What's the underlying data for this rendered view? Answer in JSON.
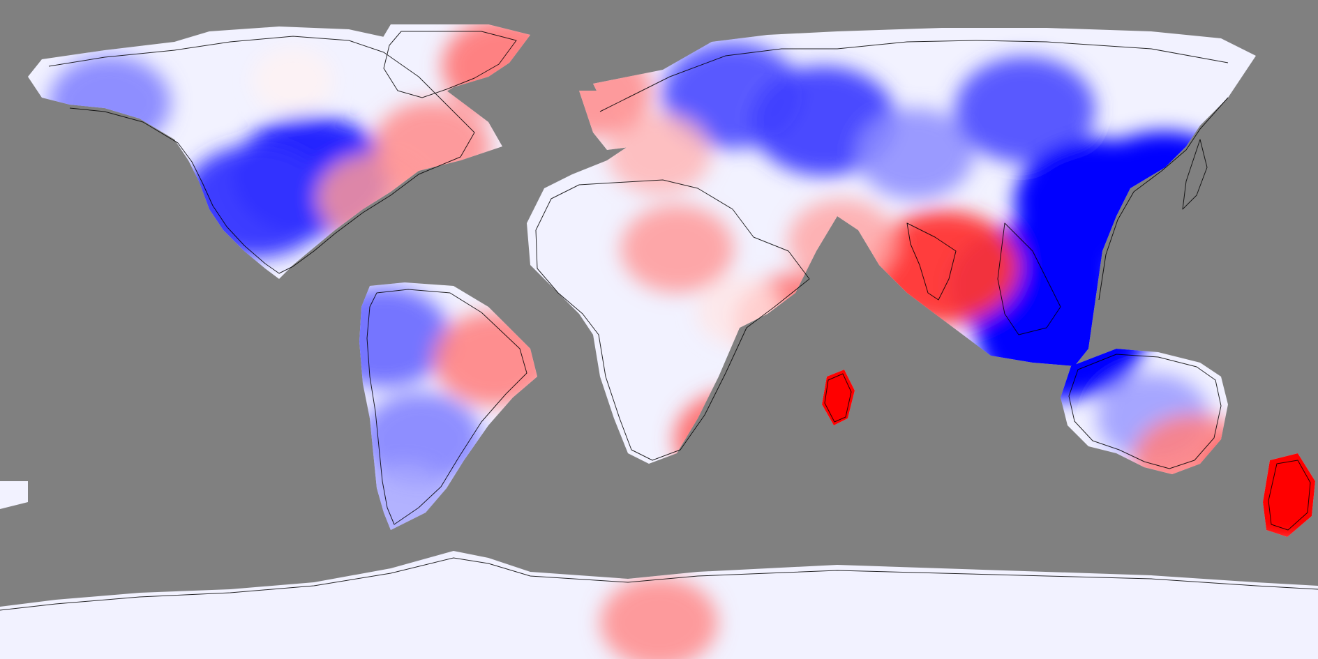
{
  "map": {
    "projection": "equirectangular",
    "extent": {
      "lon": [
        -180,
        180
      ],
      "lat": [
        -90,
        90
      ]
    },
    "background_color": "#808080",
    "coastline_color": "#000000",
    "color_scale": {
      "type": "diverging",
      "negative_color": "#0000ff",
      "neutral_color": "#ffffff",
      "positive_color": "#ff0000"
    },
    "legend": null,
    "title": null,
    "anomaly_regions": [
      {
        "name": "north-america-interior-cold",
        "lon": -95,
        "lat": 42,
        "value": -0.9
      },
      {
        "name": "western-us-cold",
        "lon": -110,
        "lat": 35,
        "value": -0.8
      },
      {
        "name": "alaska-cold",
        "lon": -150,
        "lat": 62,
        "value": -0.5
      },
      {
        "name": "canada-arctic-neutral",
        "lon": -100,
        "lat": 68,
        "value": 0.05
      },
      {
        "name": "eastern-canada-warm",
        "lon": -62,
        "lat": 50,
        "value": 0.45
      },
      {
        "name": "us-east-coast-warm",
        "lon": -78,
        "lat": 36,
        "value": 0.4
      },
      {
        "name": "greenland-warm",
        "lon": -42,
        "lat": 72,
        "value": 0.55
      },
      {
        "name": "northwest-south-america-cold",
        "lon": -75,
        "lat": -2,
        "value": -0.6
      },
      {
        "name": "southern-south-america-cold",
        "lon": -65,
        "lat": -30,
        "value": -0.5
      },
      {
        "name": "eastern-brazil-warm",
        "lon": -45,
        "lat": -8,
        "value": 0.5
      },
      {
        "name": "patagonia-cold",
        "lon": -70,
        "lat": -48,
        "value": -0.35
      },
      {
        "name": "scandinavia-cold",
        "lon": 20,
        "lat": 64,
        "value": -0.7
      },
      {
        "name": "western-russia-cold",
        "lon": 45,
        "lat": 57,
        "value": -0.75
      },
      {
        "name": "western-europe-warm",
        "lon": 0,
        "lat": 48,
        "value": 0.3
      },
      {
        "name": "iceland-warm",
        "lon": -18,
        "lat": 65,
        "value": 0.45
      },
      {
        "name": "central-asia-cold",
        "lon": 70,
        "lat": 48,
        "value": -0.45
      },
      {
        "name": "siberia-cold",
        "lon": 100,
        "lat": 60,
        "value": -0.7
      },
      {
        "name": "east-asia-strong-cold",
        "lon": 120,
        "lat": 35,
        "value": -1.0
      },
      {
        "name": "southeast-asia-strong-cold",
        "lon": 102,
        "lat": 12,
        "value": -1.0
      },
      {
        "name": "indonesia-strong-cold",
        "lon": 110,
        "lat": -2,
        "value": -1.0
      },
      {
        "name": "japan-strong-cold",
        "lon": 138,
        "lat": 37,
        "value": -1.0
      },
      {
        "name": "india-warm",
        "lon": 78,
        "lat": 17,
        "value": 0.8
      },
      {
        "name": "arabia-warm",
        "lon": 50,
        "lat": 24,
        "value": 0.35
      },
      {
        "name": "sahara-warm",
        "lon": 5,
        "lat": 22,
        "value": 0.4
      },
      {
        "name": "east-africa-warm",
        "lon": 38,
        "lat": 2,
        "value": 0.55
      },
      {
        "name": "central-africa-neutral",
        "lon": 22,
        "lat": 5,
        "value": 0.1
      },
      {
        "name": "southern-africa-warm",
        "lon": 22,
        "lat": -30,
        "value": 0.6
      },
      {
        "name": "madagascar-strong-warm",
        "lon": 47,
        "lat": -19,
        "value": 1.0
      },
      {
        "name": "australia-cold",
        "lon": 135,
        "lat": -24,
        "value": -0.4
      },
      {
        "name": "southeast-australia-warm",
        "lon": 146,
        "lat": -36,
        "value": 0.5
      },
      {
        "name": "new-zealand-strong-warm",
        "lon": 172,
        "lat": -42,
        "value": 1.0
      },
      {
        "name": "antarctica-warm",
        "lon": 0,
        "lat": -80,
        "value": 0.45
      }
    ]
  }
}
